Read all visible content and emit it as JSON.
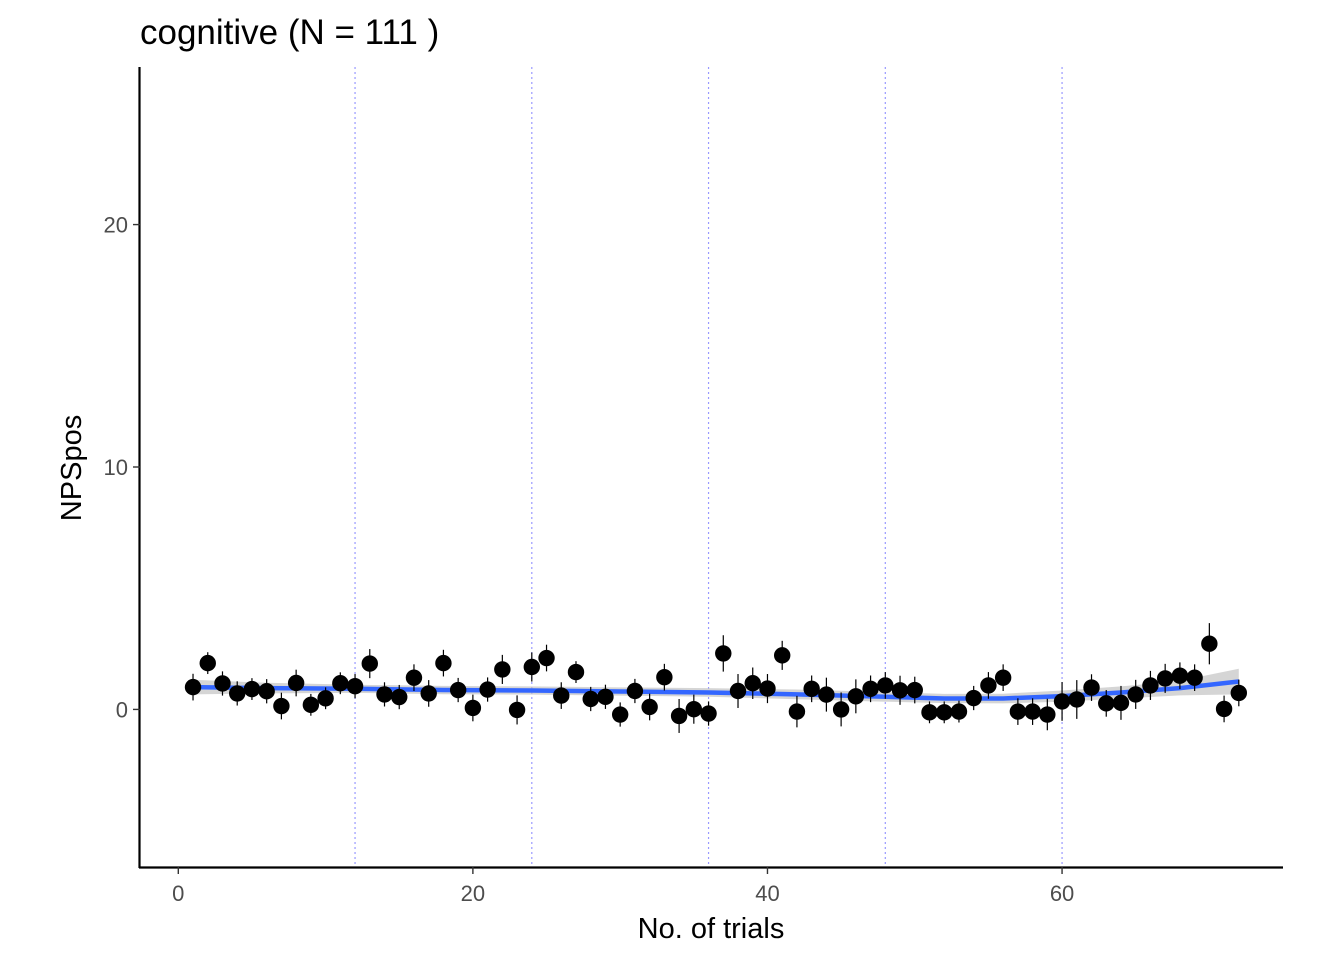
{
  "chart_data": {
    "type": "scatter",
    "title": "cognitive (N =  111 )",
    "xlabel": "No. of trials",
    "ylabel": "NPSpos",
    "xlim": [
      -2.6,
      75
    ],
    "ylim": [
      -6.5,
      26.5
    ],
    "x_ticks": [
      0,
      20,
      40,
      60
    ],
    "y_ticks": [
      0,
      10,
      20
    ],
    "x_tick_labels": [
      "0",
      "20",
      "40",
      "60"
    ],
    "y_tick_labels": [
      "0",
      "10",
      "20"
    ],
    "grid": false,
    "legend": "none",
    "reference_lines_x": [
      12,
      24,
      36,
      48,
      60
    ],
    "colors": {
      "points": "#000000",
      "errorbars": "#000000",
      "smooth": "#3366ff",
      "ribbon": "#bebebe",
      "reference_lines": "#9999ff",
      "axis": "#000000"
    },
    "series": [
      {
        "x": [
          1,
          2,
          3,
          4,
          5,
          6,
          7,
          8,
          9,
          10,
          11,
          12,
          13,
          14,
          15,
          16,
          17,
          18,
          19,
          20,
          21,
          22,
          23,
          24,
          25,
          26,
          27,
          28,
          29,
          30,
          31,
          32,
          33,
          34,
          35,
          36,
          37,
          38,
          39,
          40,
          41,
          42,
          43,
          44,
          45,
          46,
          47,
          48,
          49,
          50,
          51,
          52,
          53,
          54,
          55,
          56,
          57,
          58,
          59,
          60,
          61,
          62,
          63,
          64,
          65,
          66,
          67,
          68,
          69,
          70,
          71,
          72
        ],
        "y": [
          0.92,
          1.91,
          1.07,
          0.66,
          0.84,
          0.75,
          0.14,
          1.09,
          0.19,
          0.46,
          1.08,
          0.96,
          1.89,
          0.62,
          0.51,
          1.31,
          0.66,
          1.91,
          0.8,
          0.06,
          0.82,
          1.65,
          -0.02,
          1.75,
          2.12,
          0.57,
          1.54,
          0.43,
          0.52,
          -0.21,
          0.76,
          0.1,
          1.33,
          -0.27,
          0.01,
          -0.17,
          2.31,
          0.76,
          1.08,
          0.86,
          2.23,
          -0.09,
          0.85,
          0.61,
          0.0,
          0.54,
          0.85,
          0.99,
          0.79,
          0.8,
          -0.12,
          -0.12,
          -0.09,
          0.47,
          0.99,
          1.31,
          -0.09,
          -0.09,
          -0.21,
          0.33,
          0.41,
          0.9,
          0.25,
          0.27,
          0.62,
          0.99,
          1.28,
          1.39,
          1.31,
          2.71,
          0.02,
          0.68
        ],
        "err": [
          0.55,
          0.45,
          0.5,
          0.5,
          0.45,
          0.5,
          0.55,
          0.55,
          0.45,
          0.45,
          0.45,
          0.5,
          0.6,
          0.5,
          0.5,
          0.55,
          0.55,
          0.55,
          0.5,
          0.55,
          0.5,
          0.6,
          0.6,
          0.6,
          0.55,
          0.55,
          0.45,
          0.5,
          0.5,
          0.5,
          0.5,
          0.55,
          0.55,
          0.7,
          0.6,
          0.5,
          0.75,
          0.7,
          0.65,
          0.6,
          0.6,
          0.65,
          0.55,
          0.7,
          0.7,
          0.7,
          0.55,
          0.55,
          0.6,
          0.55,
          0.45,
          0.45,
          0.45,
          0.5,
          0.55,
          0.55,
          0.55,
          0.55,
          0.65,
          0.8,
          0.8,
          0.55,
          0.55,
          0.7,
          0.6,
          0.6,
          0.6,
          0.55,
          0.55,
          0.85,
          0.55,
          0.55
        ]
      }
    ],
    "smooth": {
      "x": [
        1,
        6,
        12,
        18,
        24,
        30,
        36,
        42,
        48,
        52,
        56,
        60,
        64,
        68,
        72
      ],
      "y": [
        0.92,
        0.88,
        0.85,
        0.8,
        0.78,
        0.74,
        0.7,
        0.62,
        0.52,
        0.45,
        0.45,
        0.55,
        0.7,
        0.88,
        1.15
      ],
      "lower": [
        0.62,
        0.66,
        0.68,
        0.63,
        0.61,
        0.57,
        0.52,
        0.42,
        0.32,
        0.26,
        0.25,
        0.32,
        0.45,
        0.58,
        0.62
      ],
      "upper": [
        1.22,
        1.1,
        1.02,
        0.97,
        0.95,
        0.91,
        0.88,
        0.82,
        0.72,
        0.64,
        0.65,
        0.78,
        0.95,
        1.18,
        1.68
      ]
    }
  }
}
